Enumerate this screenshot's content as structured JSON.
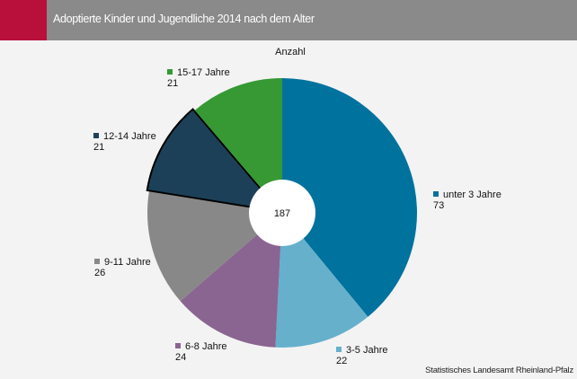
{
  "header": {
    "title": "Adoptierte Kinder und Jugendliche 2014 nach dem Alter",
    "accent_color": "#b8103b",
    "bar_color": "#8a8a8a"
  },
  "source": "Statistisches Landesamt Rheinland-Pfalz",
  "chart_data": {
    "type": "pie",
    "subtitle": "Anzahl",
    "center_label": "187",
    "start": "12 o'clock",
    "direction": "clockwise",
    "highlighted_slice": "12-14 Jahre",
    "slices": [
      {
        "label": "unter 3 Jahre",
        "value": 73,
        "color": "#00729e"
      },
      {
        "label": "3-5 Jahre",
        "value": 22,
        "color": "#66b0cc"
      },
      {
        "label": "6-8 Jahre",
        "value": 24,
        "color": "#8a6591"
      },
      {
        "label": "9-11 Jahre",
        "value": 26,
        "color": "#888888"
      },
      {
        "label": "12-14 Jahre",
        "value": 21,
        "color": "#1c4057"
      },
      {
        "label": "15-17 Jahre",
        "value": 21,
        "color": "#369934"
      }
    ]
  }
}
